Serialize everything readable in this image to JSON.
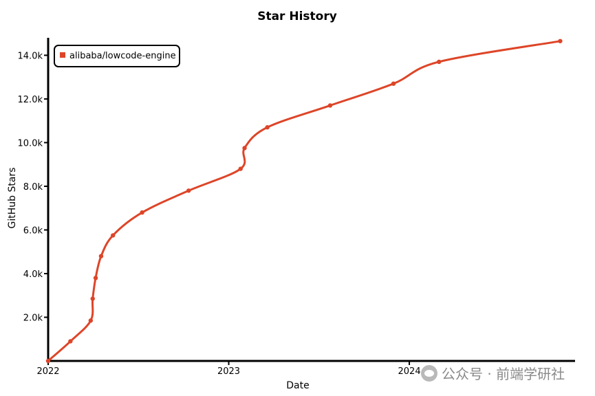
{
  "chart_data": {
    "type": "line",
    "title": "Star History",
    "xlabel": "Date",
    "ylabel": "GitHub Stars",
    "x_ticks": [
      "2022",
      "2023",
      "2024"
    ],
    "xlim": [
      "2022-01-01",
      "2024-12-01"
    ],
    "ylim": [
      0,
      14800
    ],
    "y_ticks": [
      2000,
      4000,
      6000,
      8000,
      10000,
      12000,
      14000
    ],
    "y_tick_labels": [
      "2.0k",
      "4.0k",
      "6.0k",
      "8.0k",
      "10.0k",
      "12.0k",
      "14.0k"
    ],
    "legend_position": "top-left",
    "grid": false,
    "series": [
      {
        "name": "alibaba/lowcode-engine",
        "color": "#dd4528",
        "points": [
          [
            "2022-01-01",
            0
          ],
          [
            "2022-02-15",
            900
          ],
          [
            "2022-03-28",
            1850
          ],
          [
            "2022-04-01",
            2850
          ],
          [
            "2022-04-07",
            3800
          ],
          [
            "2022-04-18",
            4800
          ],
          [
            "2022-05-12",
            5750
          ],
          [
            "2022-07-10",
            6800
          ],
          [
            "2022-10-12",
            7800
          ],
          [
            "2023-01-25",
            8800
          ],
          [
            "2023-02-02",
            9750
          ],
          [
            "2023-03-20",
            10700
          ],
          [
            "2023-07-25",
            11700
          ],
          [
            "2023-11-30",
            12700
          ],
          [
            "2024-03-01",
            13700
          ],
          [
            "2024-11-01",
            14650
          ]
        ]
      }
    ]
  },
  "watermark": {
    "text": "公众号 · 前端学研社",
    "icon": "wechat-icon"
  }
}
